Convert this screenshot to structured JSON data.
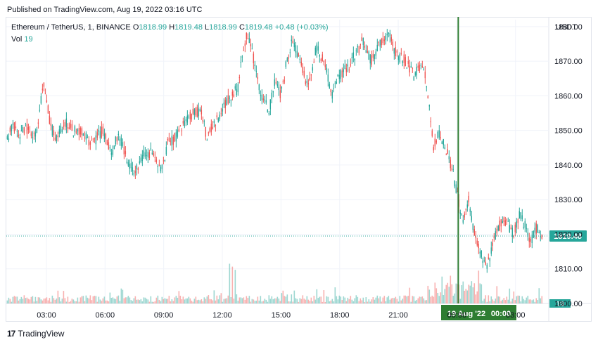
{
  "header": {
    "published_text": "Published on TradingView.com, Aug 19, 2022 03:16 UTC"
  },
  "legend": {
    "symbol": "Ethereum / TetherUS, 1, BINANCE",
    "open_label": "O",
    "open_value": "1818.99",
    "high_label": "H",
    "high_value": "1819.48",
    "low_label": "L",
    "low_value": "1818.99",
    "close_label": "C",
    "close_value": "1819.48",
    "change_value": "+0.48 (+0.03%)",
    "volume_label": "Vol",
    "volume_value": "19"
  },
  "axis_unit": "USDT",
  "footer": {
    "brand": "TradingView",
    "logo": "17"
  },
  "colors": {
    "up": "#26a69a",
    "down": "#ef5350",
    "grid": "#f0f3fa",
    "marker": "#2e7d32",
    "price_tag": "#26a69a"
  },
  "chart_data": {
    "type": "candlestick",
    "y_ticks": [
      "1880.00",
      "1870.00",
      "1860.00",
      "1850.00",
      "1840.00",
      "1830.00",
      "1820.00",
      "1810.00",
      "1800.00"
    ],
    "ylim": [
      1800,
      1882
    ],
    "x_ticks": [
      "03:00",
      "06:00",
      "09:00",
      "12:00",
      "15:00",
      "18:00",
      "21:00",
      "00:00",
      "03:00"
    ],
    "x_tick_hours": [
      3,
      6,
      9,
      12,
      15,
      18,
      21,
      24,
      27
    ],
    "xlim_hours": [
      0.95,
      28.7
    ],
    "date_label": "19 Aug '22",
    "crosshair_label": "00:00",
    "crosshair_hour": 24.07,
    "last_price": "1819.48",
    "volume_axis_label": "19",
    "price_path": [
      [
        1.0,
        1847
      ],
      [
        1.3,
        1852
      ],
      [
        1.6,
        1848
      ],
      [
        1.9,
        1851
      ],
      [
        2.2,
        1849
      ],
      [
        2.5,
        1850
      ],
      [
        2.7,
        1858
      ],
      [
        2.9,
        1864
      ],
      [
        3.2,
        1851
      ],
      [
        3.5,
        1848
      ],
      [
        4.0,
        1852
      ],
      [
        4.4,
        1850
      ],
      [
        4.9,
        1849
      ],
      [
        5.3,
        1846
      ],
      [
        5.6,
        1848
      ],
      [
        5.9,
        1850
      ],
      [
        6.3,
        1843
      ],
      [
        6.7,
        1849
      ],
      [
        7.1,
        1842
      ],
      [
        7.5,
        1838
      ],
      [
        8.0,
        1843
      ],
      [
        8.5,
        1844
      ],
      [
        8.9,
        1838
      ],
      [
        9.2,
        1846
      ],
      [
        9.6,
        1848
      ],
      [
        10.1,
        1852
      ],
      [
        10.6,
        1856
      ],
      [
        11.0,
        1854
      ],
      [
        11.2,
        1848
      ],
      [
        11.6,
        1852
      ],
      [
        12.0,
        1856
      ],
      [
        12.4,
        1860
      ],
      [
        12.8,
        1862
      ],
      [
        13.0,
        1872
      ],
      [
        13.3,
        1878
      ],
      [
        13.7,
        1868
      ],
      [
        14.0,
        1860
      ],
      [
        14.4,
        1856
      ],
      [
        14.7,
        1864
      ],
      [
        15.0,
        1860
      ],
      [
        15.3,
        1870
      ],
      [
        15.6,
        1876
      ],
      [
        16.0,
        1870
      ],
      [
        16.4,
        1862
      ],
      [
        16.8,
        1874
      ],
      [
        17.2,
        1870
      ],
      [
        17.6,
        1860
      ],
      [
        18.0,
        1866
      ],
      [
        18.4,
        1868
      ],
      [
        18.8,
        1872
      ],
      [
        19.2,
        1876
      ],
      [
        19.6,
        1870
      ],
      [
        20.0,
        1874
      ],
      [
        20.5,
        1878
      ],
      [
        20.9,
        1872
      ],
      [
        21.4,
        1870
      ],
      [
        21.8,
        1866
      ],
      [
        22.1,
        1868
      ],
      [
        22.4,
        1866
      ],
      [
        22.6,
        1857
      ],
      [
        22.8,
        1845
      ],
      [
        23.1,
        1849
      ],
      [
        23.5,
        1844
      ],
      [
        23.8,
        1838
      ],
      [
        24.0,
        1832
      ],
      [
        24.3,
        1823
      ],
      [
        24.6,
        1830
      ],
      [
        24.9,
        1820
      ],
      [
        25.2,
        1815
      ],
      [
        25.5,
        1810
      ],
      [
        25.8,
        1816
      ],
      [
        26.1,
        1822
      ],
      [
        26.5,
        1824
      ],
      [
        26.9,
        1820
      ],
      [
        27.2,
        1826
      ],
      [
        27.5,
        1822
      ],
      [
        27.8,
        1818
      ],
      [
        28.1,
        1822
      ],
      [
        28.35,
        1819.48
      ]
    ]
  }
}
